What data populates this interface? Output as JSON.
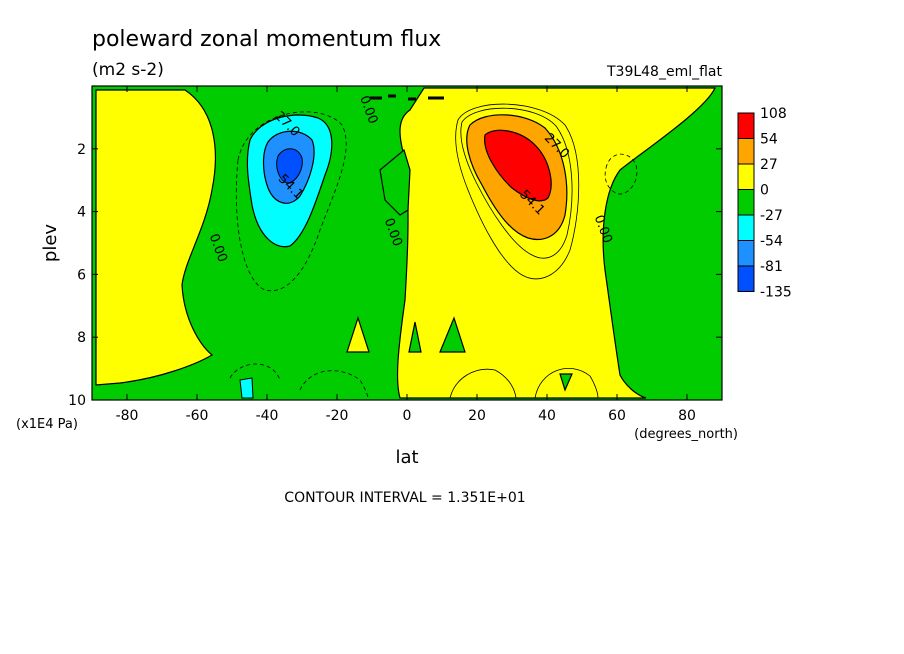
{
  "chart_data": {
    "type": "heatmap",
    "title": "poleward zonal momentum flux",
    "units": "(m2 s-2)",
    "experiment": "T39L48_eml_flat",
    "xlabel": "lat",
    "x_units": "(degrees_north)",
    "ylabel": "plev",
    "y_units": "(x1E4 Pa)",
    "xlim": [
      -90,
      90
    ],
    "ylim": [
      10,
      0
    ],
    "x_ticks": [
      -80,
      -60,
      -40,
      -20,
      0,
      20,
      40,
      60,
      80
    ],
    "y_ticks": [
      2,
      4,
      6,
      8,
      10
    ],
    "contour_interval_text": "CONTOUR INTERVAL = 1.351E+01",
    "colorbar": {
      "labels": [
        "108",
        "54",
        "27",
        "0",
        "-27",
        "-54",
        "-81",
        "-135"
      ],
      "colors": [
        "#ff0000",
        "#ffa500",
        "#ffff00",
        "#00cc00",
        "#00ffff",
        "#1e90ff",
        "#0050ff"
      ]
    },
    "contour_labels": [
      {
        "text": "27.0",
        "lat": -35,
        "plev": 1.3
      },
      {
        "text": "54.1",
        "lat": -34,
        "plev": 3.3
      },
      {
        "text": "0.00",
        "lat": -12,
        "plev": 0.8
      },
      {
        "text": "0.00",
        "lat": -55,
        "plev": 5.2
      },
      {
        "text": "0.00",
        "lat": -5,
        "plev": 4.7
      },
      {
        "text": "27.0",
        "lat": 42,
        "plev": 2.0
      },
      {
        "text": "54.1",
        "lat": 35,
        "plev": 3.8
      },
      {
        "text": "0.00",
        "lat": 55,
        "plev": 4.6
      }
    ],
    "features": [
      {
        "name": "southern-hemisphere-minimum",
        "lat": -35,
        "plev": 2.7,
        "approx_value": -81
      },
      {
        "name": "northern-hemisphere-maximum",
        "lat": 32,
        "plev": 2.9,
        "approx_value": 81
      }
    ]
  }
}
